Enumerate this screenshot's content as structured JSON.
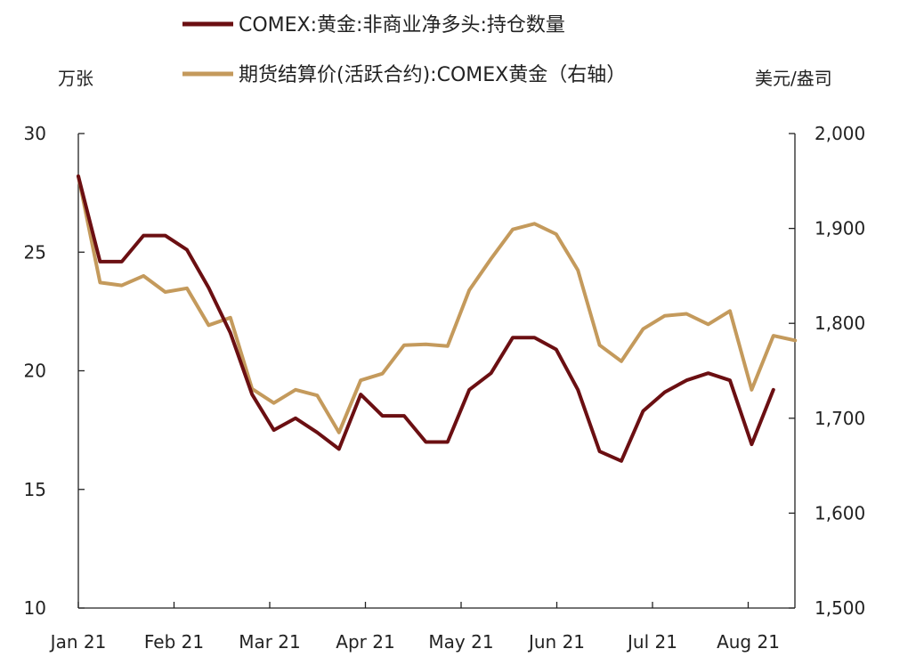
{
  "chart_data": {
    "type": "line",
    "x_tick_labels": [
      "Jan 21",
      "Feb 21",
      "Mar 21",
      "Apr 21",
      "May 21",
      "Jun 21",
      "Jul 21",
      "Aug 21"
    ],
    "left_axis": {
      "unit": "万张",
      "ylim": [
        10,
        30
      ],
      "ticks": [
        "10",
        "15",
        "20",
        "25",
        "30"
      ]
    },
    "right_axis": {
      "unit": "美元/盎司",
      "ylim": [
        1500,
        2000
      ],
      "ticks": [
        "1,500",
        "1,600",
        "1,700",
        "1,800",
        "1,900",
        "2,000"
      ]
    },
    "series": [
      {
        "name": "COMEX:黄金:非商业净多头:持仓数量",
        "color": "#6b0f12",
        "axis": "left",
        "values": [
          28.2,
          24.6,
          24.6,
          25.7,
          25.7,
          25.1,
          23.5,
          21.6,
          19.0,
          17.5,
          18.0,
          17.4,
          16.7,
          19.0,
          18.1,
          18.1,
          17.0,
          17.0,
          19.2,
          19.9,
          21.4,
          21.4,
          20.9,
          19.2,
          16.6,
          16.2,
          18.3,
          19.1,
          19.6,
          19.9,
          19.6,
          16.9,
          19.2
        ]
      },
      {
        "name": "期货结算价(活跃合约):COMEX黄金（右轴）",
        "color": "#c49a5c",
        "axis": "right",
        "values": [
          1955,
          1843,
          1840,
          1850,
          1833,
          1837,
          1798,
          1806,
          1731,
          1716,
          1730,
          1724,
          1685,
          1740,
          1747,
          1777,
          1778,
          1776,
          1835,
          1868,
          1899,
          1905,
          1894,
          1856,
          1777,
          1760,
          1794,
          1808,
          1810,
          1799,
          1813,
          1730,
          1787,
          1782
        ]
      }
    ]
  }
}
